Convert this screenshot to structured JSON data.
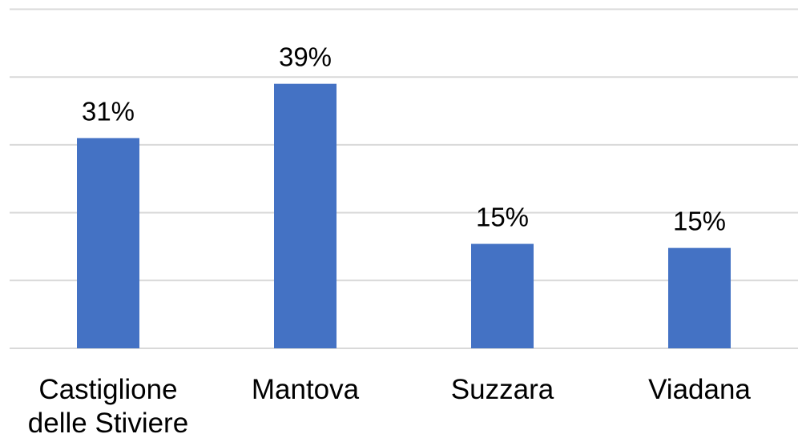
{
  "chart_data": {
    "type": "bar",
    "categories": [
      "Castiglione delle Stiviere",
      "Mantova",
      "Suzzara",
      "Viadana"
    ],
    "values": [
      31,
      39,
      15.4,
      14.8
    ],
    "value_labels": [
      "31%",
      "39%",
      "15%",
      "15%"
    ],
    "color": "#4472c4",
    "ylim": [
      0,
      50
    ],
    "yticks": [
      0,
      10,
      20,
      30,
      40,
      50
    ],
    "grid": true
  }
}
